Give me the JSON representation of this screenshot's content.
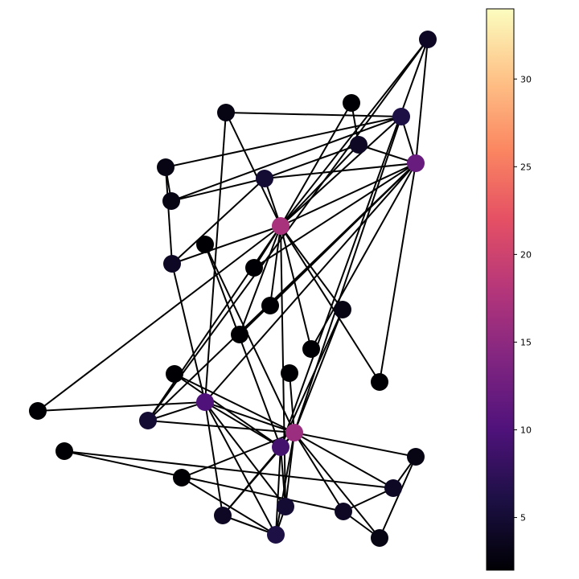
{
  "colormap": {
    "name": "magma",
    "stops": [
      "#000004",
      "#1c1044",
      "#4f127b",
      "#812581",
      "#b5367a",
      "#e55064",
      "#fb8761",
      "#fec287",
      "#fcfdbf"
    ]
  },
  "colorbar": {
    "vmin": 2,
    "vmax": 34,
    "ticks": [
      {
        "value": 5,
        "label": "5"
      },
      {
        "value": 10,
        "label": "10"
      },
      {
        "value": 15,
        "label": "15"
      },
      {
        "value": 20,
        "label": "20"
      },
      {
        "value": 25,
        "label": "25"
      },
      {
        "value": 30,
        "label": "30"
      }
    ]
  },
  "graph": {
    "node_degrees": [
      16,
      9,
      10,
      6,
      3,
      4,
      4,
      4,
      5,
      2,
      3,
      1,
      2,
      5,
      2,
      2,
      2,
      2,
      2,
      3,
      2,
      2,
      2,
      5,
      3,
      3,
      2,
      4,
      3,
      4,
      4,
      6,
      12,
      17
    ],
    "edges": [
      [
        0,
        1
      ],
      [
        0,
        2
      ],
      [
        0,
        3
      ],
      [
        0,
        4
      ],
      [
        0,
        5
      ],
      [
        0,
        6
      ],
      [
        0,
        7
      ],
      [
        0,
        8
      ],
      [
        0,
        10
      ],
      [
        0,
        11
      ],
      [
        0,
        12
      ],
      [
        0,
        13
      ],
      [
        0,
        17
      ],
      [
        0,
        19
      ],
      [
        0,
        21
      ],
      [
        0,
        31
      ],
      [
        1,
        2
      ],
      [
        1,
        3
      ],
      [
        1,
        7
      ],
      [
        1,
        13
      ],
      [
        1,
        17
      ],
      [
        1,
        19
      ],
      [
        1,
        21
      ],
      [
        1,
        30
      ],
      [
        2,
        3
      ],
      [
        2,
        7
      ],
      [
        2,
        8
      ],
      [
        2,
        9
      ],
      [
        2,
        13
      ],
      [
        2,
        27
      ],
      [
        2,
        28
      ],
      [
        2,
        32
      ],
      [
        3,
        7
      ],
      [
        3,
        12
      ],
      [
        3,
        13
      ],
      [
        4,
        6
      ],
      [
        4,
        10
      ],
      [
        5,
        6
      ],
      [
        5,
        10
      ],
      [
        5,
        16
      ],
      [
        6,
        16
      ],
      [
        8,
        30
      ],
      [
        8,
        32
      ],
      [
        8,
        33
      ],
      [
        9,
        33
      ],
      [
        13,
        33
      ],
      [
        14,
        32
      ],
      [
        14,
        33
      ],
      [
        15,
        32
      ],
      [
        15,
        33
      ],
      [
        18,
        32
      ],
      [
        18,
        33
      ],
      [
        19,
        33
      ],
      [
        20,
        32
      ],
      [
        20,
        33
      ],
      [
        22,
        32
      ],
      [
        22,
        33
      ],
      [
        23,
        25
      ],
      [
        23,
        27
      ],
      [
        23,
        29
      ],
      [
        23,
        32
      ],
      [
        23,
        33
      ],
      [
        24,
        25
      ],
      [
        24,
        27
      ],
      [
        24,
        31
      ],
      [
        25,
        31
      ],
      [
        26,
        29
      ],
      [
        26,
        33
      ],
      [
        27,
        33
      ],
      [
        28,
        31
      ],
      [
        28,
        33
      ],
      [
        29,
        32
      ],
      [
        29,
        33
      ],
      [
        30,
        32
      ],
      [
        30,
        33
      ],
      [
        31,
        32
      ],
      [
        31,
        33
      ],
      [
        32,
        33
      ]
    ]
  }
}
